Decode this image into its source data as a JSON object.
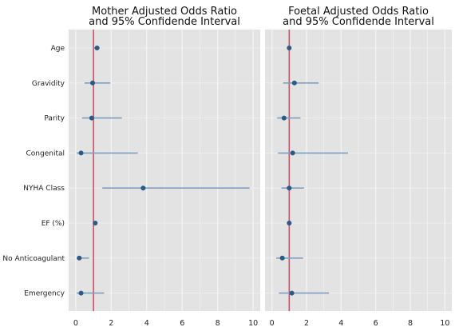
{
  "chart_data": [
    {
      "type": "scatter",
      "subtype": "forest-plot",
      "title": "Mother Adjusted Odds Ratio\nand 95% Confidende Interval",
      "categories": [
        "Age",
        "Gravidity",
        "Parity",
        "Congenital",
        "NYHA Class",
        "EF (%)",
        "No Anticoagulant",
        "Emergency"
      ],
      "estimate": [
        1.2,
        0.95,
        0.9,
        0.3,
        3.8,
        1.1,
        0.2,
        0.3
      ],
      "ci_low": [
        1.0,
        0.5,
        0.35,
        0.05,
        1.5,
        1.0,
        0.05,
        0.05
      ],
      "ci_high": [
        1.35,
        1.95,
        2.6,
        3.5,
        9.8,
        1.2,
        0.75,
        1.6
      ],
      "reference_line": 1,
      "xlim": [
        -0.4,
        10.4
      ],
      "xticks": [
        0,
        2,
        4,
        6,
        8,
        10
      ],
      "grid": true
    },
    {
      "type": "scatter",
      "subtype": "forest-plot",
      "title": "Foetal Adjusted Odds Ratio\nand 95% Confidende Interval",
      "categories": [
        "Age",
        "Gravidity",
        "Parity",
        "Congenital",
        "NYHA Class",
        "EF (%)",
        "No Anticoagulant",
        "Emergency"
      ],
      "estimate": [
        1.0,
        1.3,
        0.7,
        1.2,
        1.0,
        1.0,
        0.6,
        1.15
      ],
      "ci_low": [
        0.95,
        0.65,
        0.3,
        0.35,
        0.55,
        0.95,
        0.25,
        0.4
      ],
      "ci_high": [
        1.05,
        2.7,
        1.65,
        4.4,
        1.85,
        1.05,
        1.8,
        3.3
      ],
      "reference_line": 1,
      "xlim": [
        -0.4,
        10.4
      ],
      "xticks": [
        0,
        2,
        4,
        6,
        8,
        10
      ],
      "grid": true
    }
  ],
  "colors": {
    "panel_bg": "#e3e3e3",
    "grid": "#f5f5f5",
    "reference_line": "#c8506a",
    "ci_line": "#7f9fbc",
    "point": "#2a5a85"
  }
}
